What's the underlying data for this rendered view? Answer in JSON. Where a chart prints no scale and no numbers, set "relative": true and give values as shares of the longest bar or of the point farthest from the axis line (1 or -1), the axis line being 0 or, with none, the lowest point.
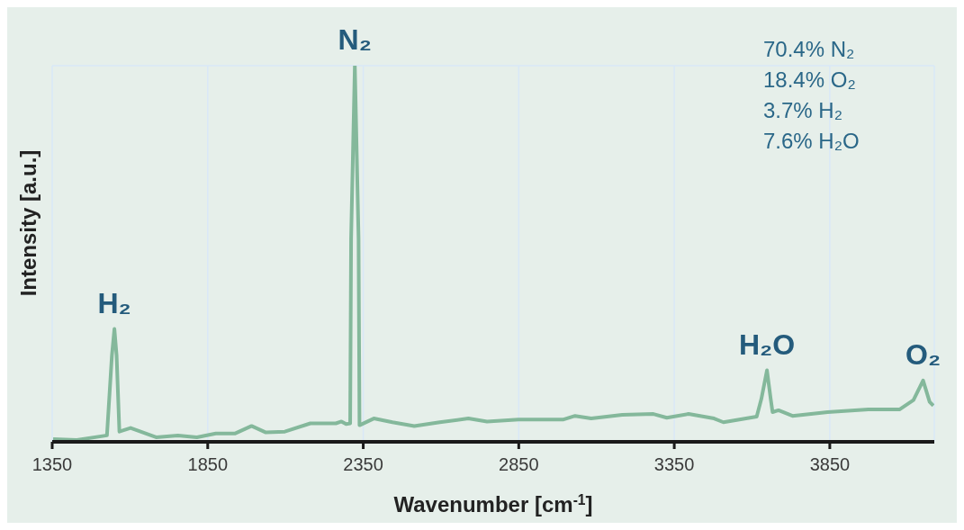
{
  "chart_data": {
    "type": "line",
    "relative": true,
    "xlabel": "Wavenumber [cm$^{-1}$]",
    "ylabel": "Intensity [a.u.]",
    "xlim": [
      1350,
      4186
    ],
    "xticks": [
      1350,
      1850,
      2350,
      2850,
      3350,
      3850
    ],
    "grid": true,
    "marker": "none",
    "line_style": "solid",
    "tick_labels": "x",
    "x": [
      1353,
      1429,
      1526,
      1542,
      1550,
      1557,
      1566,
      1602,
      1684,
      1754,
      1815,
      1876,
      1937,
      1991,
      2037,
      2098,
      2180,
      2262,
      2280,
      2295,
      2308,
      2311,
      2323,
      2335,
      2338,
      2384,
      2444,
      2514,
      2596,
      2688,
      2748,
      2849,
      2992,
      3031,
      3083,
      3183,
      3283,
      3326,
      3396,
      3478,
      3508,
      3615,
      3630,
      3648,
      3660,
      3666,
      3685,
      3730,
      3843,
      3974,
      4074,
      4119,
      4150,
      4171,
      4183
    ],
    "series": [
      {
        "color": "#84b89b",
        "values": [
          0.007,
          0.005,
          0.017,
          0.23,
          0.3,
          0.23,
          0.027,
          0.037,
          0.012,
          0.017,
          0.012,
          0.022,
          0.022,
          0.042,
          0.025,
          0.027,
          0.049,
          0.049,
          0.054,
          0.047,
          0.049,
          0.54,
          1,
          0.54,
          0.044,
          0.062,
          0.052,
          0.042,
          0.052,
          0.062,
          0.054,
          0.059,
          0.059,
          0.069,
          0.062,
          0.072,
          0.074,
          0.064,
          0.074,
          0.062,
          0.052,
          0.067,
          0.114,
          0.19,
          0.114,
          0.079,
          0.084,
          0.069,
          0.079,
          0.086,
          0.086,
          0.111,
          0.163,
          0.106,
          0.096
        ]
      }
    ],
    "annotations": [
      {
        "text": "H₂",
        "x": 1550,
        "y": 0.3
      },
      {
        "text": "N₂",
        "x": 2323,
        "y": 1
      },
      {
        "text": "H₂O",
        "x": 3648,
        "y": 0.19
      },
      {
        "text": "O₂",
        "x": 4150,
        "y": 0.163
      },
      "70.4% N₂",
      "18.4% O₂",
      "3.7% H₂",
      "7.6% H₂O"
    ]
  }
}
